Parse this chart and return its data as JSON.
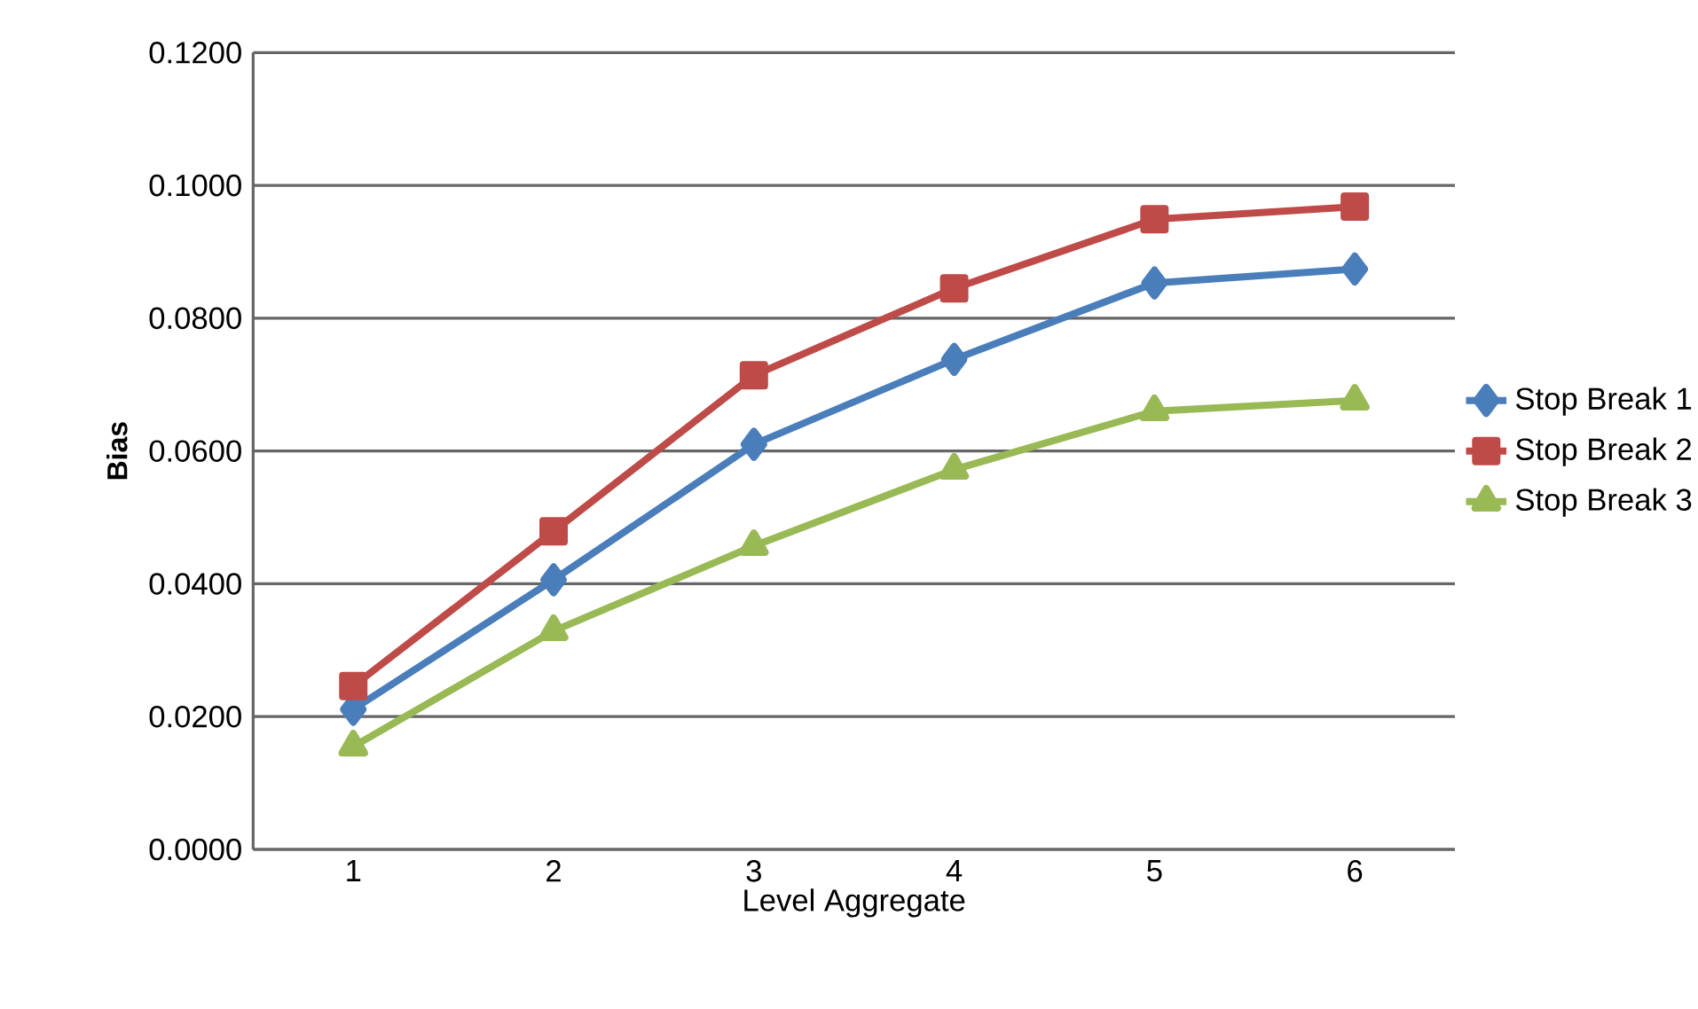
{
  "chart_data": {
    "type": "line",
    "xlabel": "Level Aggregate",
    "ylabel": "Bias",
    "categories": [
      "1",
      "2",
      "3",
      "4",
      "5",
      "6"
    ],
    "series": [
      {
        "name": "Stop Break 1",
        "color": "#4a7ebb",
        "marker": "diamond",
        "values": [
          0.0211,
          0.0406,
          0.061,
          0.0738,
          0.0853,
          0.0874
        ]
      },
      {
        "name": "Stop Break 2",
        "color": "#be4b48",
        "marker": "square",
        "values": [
          0.0246,
          0.0479,
          0.0714,
          0.0845,
          0.0949,
          0.0968
        ]
      },
      {
        "name": "Stop Break 3",
        "color": "#98b954",
        "marker": "triangle",
        "values": [
          0.0155,
          0.0329,
          0.0457,
          0.0572,
          0.066,
          0.0676
        ]
      }
    ],
    "ylim": [
      0,
      0.12
    ],
    "yticks": [
      {
        "value": 0,
        "label": "0.0000"
      },
      {
        "value": 0.02,
        "label": "0.0200"
      },
      {
        "value": 0.04,
        "label": "0.0400"
      },
      {
        "value": 0.06,
        "label": "0.0600"
      },
      {
        "value": 0.08,
        "label": "0.0800"
      },
      {
        "value": 0.1,
        "label": "0.1000"
      },
      {
        "value": 0.12,
        "label": "0.1200"
      }
    ],
    "grid": "y",
    "legend": "right",
    "line_style": "solid"
  }
}
